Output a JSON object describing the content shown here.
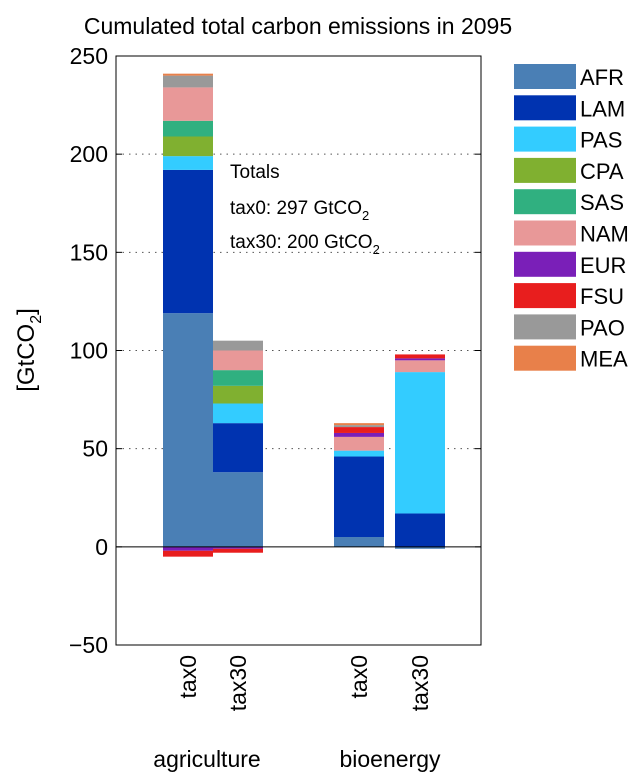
{
  "chart_data": {
    "type": "bar",
    "stacked": true,
    "title": "Cumulated total carbon emissions in 2095",
    "ylabel": "[GtCO",
    "ylabel_sub": "2",
    "ylabel_end": "]",
    "ylim": [
      -50,
      250
    ],
    "yticks": [
      -50,
      0,
      50,
      100,
      150,
      200,
      250
    ],
    "ytick_labels": [
      "−50",
      "0",
      "50",
      "100",
      "150",
      "200",
      "250"
    ],
    "grid": "horizontal dotted",
    "legend_position": "right",
    "categories": [
      "tax0",
      "tax30",
      "tax0",
      "tax30"
    ],
    "groups": [
      "agriculture",
      "bioenergy"
    ],
    "series": [
      {
        "name": "AFR",
        "color": "#4a7fb5",
        "values": [
          119,
          38,
          5,
          -1
        ]
      },
      {
        "name": "LAM",
        "color": "#0033b0",
        "values": [
          73,
          25,
          41,
          17
        ]
      },
      {
        "name": "PAS",
        "color": "#33ccff",
        "values": [
          7,
          10,
          3,
          72
        ]
      },
      {
        "name": "CPA",
        "color": "#80b030",
        "values": [
          10,
          9,
          0,
          0
        ]
      },
      {
        "name": "SAS",
        "color": "#30b080",
        "values": [
          8,
          8,
          0,
          0
        ]
      },
      {
        "name": "NAM",
        "color": "#e89898",
        "values": [
          17,
          10,
          7,
          6
        ]
      },
      {
        "name": "EUR",
        "color": "#7a1fb8",
        "values": [
          -2,
          -1,
          2,
          1
        ]
      },
      {
        "name": "FSU",
        "color": "#e81e1e",
        "values": [
          -3,
          -2,
          3,
          2
        ]
      },
      {
        "name": "PAO",
        "color": "#999999",
        "values": [
          6,
          5,
          1,
          0
        ]
      },
      {
        "name": "MEA",
        "color": "#e8804a",
        "values": [
          1,
          0,
          1,
          0
        ]
      }
    ],
    "annotation": {
      "heading": "Totals",
      "line1": "tax0: 297 GtCO",
      "line1_sub": "2",
      "line2": "tax30: 200 GtCO",
      "line2_sub": "2"
    }
  }
}
